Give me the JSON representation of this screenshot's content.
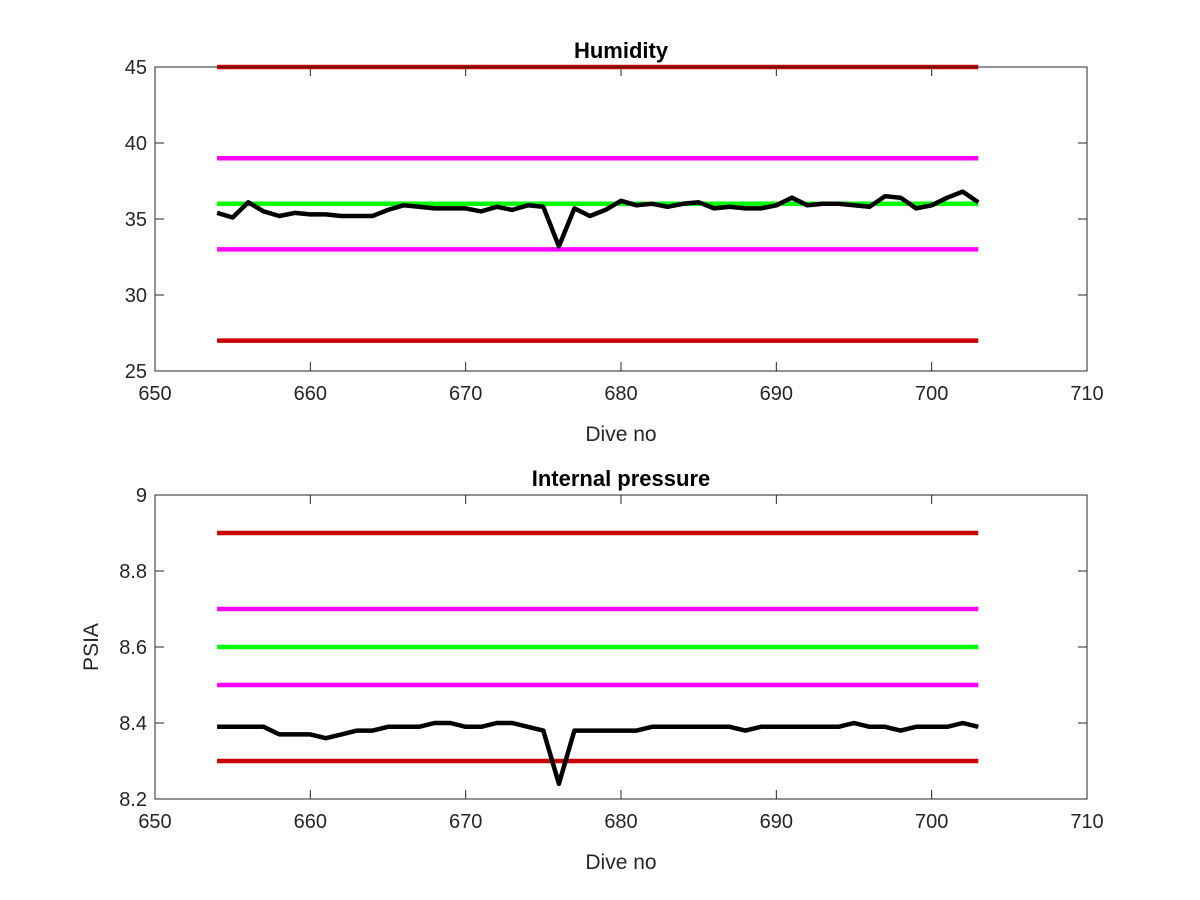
{
  "chart_data": [
    {
      "type": "line",
      "title": "Humidity",
      "xlabel": "Dive no",
      "ylabel": "",
      "xlim": [
        650,
        710
      ],
      "ylim": [
        25,
        45
      ],
      "xticks": [
        "650",
        "660",
        "670",
        "680",
        "690",
        "700",
        "710"
      ],
      "yticks": [
        "25",
        "30",
        "35",
        "40",
        "45"
      ],
      "grid": false,
      "series": [
        {
          "color": "#cc0000",
          "x": [
            654,
            703
          ],
          "y": [
            45,
            45
          ]
        },
        {
          "color": "#cc0000",
          "x": [
            654,
            703
          ],
          "y": [
            27,
            27
          ]
        },
        {
          "color": "#ff00ff",
          "x": [
            654,
            703
          ],
          "y": [
            39,
            39
          ]
        },
        {
          "color": "#ff00ff",
          "x": [
            654,
            703
          ],
          "y": [
            33,
            33
          ]
        },
        {
          "color": "#00ff00",
          "x": [
            654,
            703
          ],
          "y": [
            36,
            36
          ]
        },
        {
          "color": "#000000",
          "x": [
            654,
            655,
            656,
            657,
            658,
            659,
            660,
            661,
            662,
            663,
            664,
            665,
            666,
            667,
            668,
            669,
            670,
            671,
            672,
            673,
            674,
            675,
            676,
            677,
            678,
            679,
            680,
            681,
            682,
            683,
            684,
            685,
            686,
            687,
            688,
            689,
            690,
            691,
            692,
            693,
            694,
            695,
            696,
            697,
            698,
            699,
            700,
            701,
            702,
            703
          ],
          "y": [
            35.4,
            35.1,
            36.1,
            35.5,
            35.2,
            35.4,
            35.3,
            35.3,
            35.2,
            35.2,
            35.2,
            35.6,
            35.9,
            35.8,
            35.7,
            35.7,
            35.7,
            35.5,
            35.8,
            35.6,
            35.9,
            35.8,
            33.2,
            35.7,
            35.2,
            35.6,
            36.2,
            35.9,
            36.0,
            35.8,
            36.0,
            36.1,
            35.7,
            35.8,
            35.7,
            35.7,
            35.9,
            36.4,
            35.9,
            36.0,
            36.0,
            35.9,
            35.8,
            36.5,
            36.4,
            35.7,
            35.9,
            36.4,
            36.8,
            36.1
          ]
        }
      ]
    },
    {
      "type": "line",
      "title": "Internal pressure",
      "xlabel": "Dive no",
      "ylabel": "PSIA",
      "xlim": [
        650,
        710
      ],
      "ylim": [
        8.2,
        9.0
      ],
      "xticks": [
        "650",
        "660",
        "670",
        "680",
        "690",
        "700",
        "710"
      ],
      "yticks": [
        "8.2",
        "8.4",
        "8.6",
        "8.8",
        "9"
      ],
      "grid": false,
      "series": [
        {
          "color": "#cc0000",
          "x": [
            654,
            703
          ],
          "y": [
            8.9,
            8.9
          ]
        },
        {
          "color": "#cc0000",
          "x": [
            654,
            703
          ],
          "y": [
            8.3,
            8.3
          ]
        },
        {
          "color": "#ff00ff",
          "x": [
            654,
            703
          ],
          "y": [
            8.7,
            8.7
          ]
        },
        {
          "color": "#ff00ff",
          "x": [
            654,
            703
          ],
          "y": [
            8.5,
            8.5
          ]
        },
        {
          "color": "#00ff00",
          "x": [
            654,
            703
          ],
          "y": [
            8.6,
            8.6
          ]
        },
        {
          "color": "#000000",
          "x": [
            654,
            655,
            656,
            657,
            658,
            659,
            660,
            661,
            662,
            663,
            664,
            665,
            666,
            667,
            668,
            669,
            670,
            671,
            672,
            673,
            674,
            675,
            676,
            677,
            678,
            679,
            680,
            681,
            682,
            683,
            684,
            685,
            686,
            687,
            688,
            689,
            690,
            691,
            692,
            693,
            694,
            695,
            696,
            697,
            698,
            699,
            700,
            701,
            702,
            703
          ],
          "y": [
            8.39,
            8.39,
            8.39,
            8.39,
            8.37,
            8.37,
            8.37,
            8.36,
            8.37,
            8.38,
            8.38,
            8.39,
            8.39,
            8.39,
            8.4,
            8.4,
            8.39,
            8.39,
            8.4,
            8.4,
            8.39,
            8.38,
            8.24,
            8.38,
            8.38,
            8.38,
            8.38,
            8.38,
            8.39,
            8.39,
            8.39,
            8.39,
            8.39,
            8.39,
            8.38,
            8.39,
            8.39,
            8.39,
            8.39,
            8.39,
            8.39,
            8.4,
            8.39,
            8.39,
            8.38,
            8.39,
            8.39,
            8.39,
            8.4,
            8.39
          ]
        }
      ]
    }
  ]
}
